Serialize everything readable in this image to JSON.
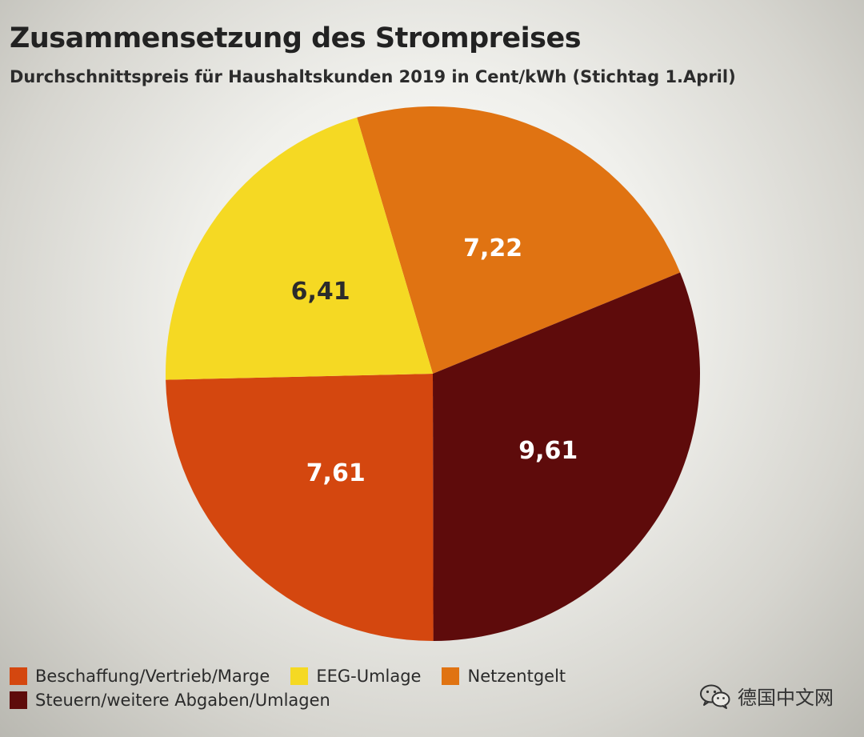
{
  "chart_data": {
    "type": "pie",
    "title": "Zusammensetzung des Strompreises",
    "subtitle": "Durchschnittspreis für Haushaltskunden 2019 in Cent/kWh (Stichtag 1.April)",
    "slices": [
      {
        "name": "Netzentgelt",
        "value": 7.22,
        "label": "7,22",
        "color": "#e07312",
        "label_color": "#ffffff"
      },
      {
        "name": "Steuern/weitere Abgaben/Umlagen",
        "value": 9.61,
        "label": "9,61",
        "color": "#5e0b0b",
        "label_color": "#ffffff"
      },
      {
        "name": "Beschaffung/Vertrieb/Marge",
        "value": 7.61,
        "label": "7,61",
        "color": "#d4470f",
        "label_color": "#ffffff"
      },
      {
        "name": "EEG-Umlage",
        "value": 6.41,
        "label": "6,41",
        "color": "#f5d923",
        "label_color": "#2b2b2b"
      }
    ],
    "legend": [
      {
        "label": "Beschaffung/Vertrieb/Marge",
        "color": "#d4470f"
      },
      {
        "label": "EEG-Umlage",
        "color": "#f5d923"
      },
      {
        "label": "Netzentgelt",
        "color": "#e07312"
      },
      {
        "label": "Steuern/weitere Abgaben/Umlagen",
        "color": "#5e0b0b"
      }
    ],
    "legend_position": "bottom-left"
  },
  "watermark": {
    "icon": "wechat-icon",
    "text": "德国中文网"
  }
}
